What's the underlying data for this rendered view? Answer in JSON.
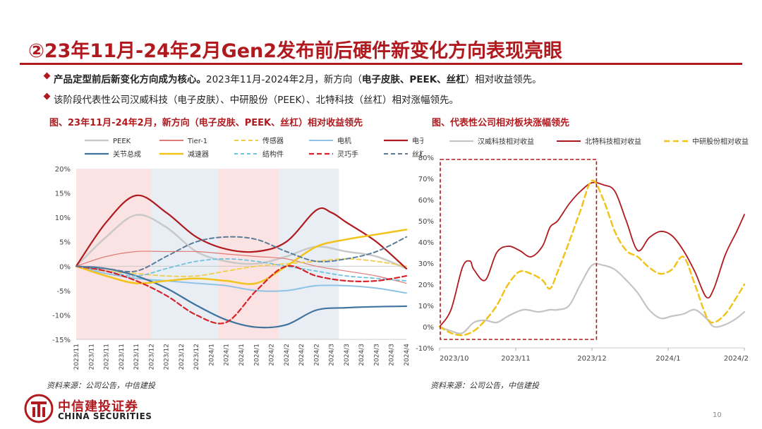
{
  "header": {
    "title": "②23年11月-24年2月Gen2发布前后硬件新变化方向表现亮眼"
  },
  "bullets": [
    {
      "bold": "产品定型前后新变化方向成为核心。",
      "text": "2023年11月-2024年2月，新方向（",
      "bold2": "电子皮肤、PEEK、丝杠",
      "text2": "）相对收益领先。"
    },
    {
      "text": "该阶段代表性公司汉威科技（电子皮肤）、中研股份（PEEK）、北特科技（丝杠）相对涨幅领先。"
    }
  ],
  "colors": {
    "accent": "#b01a1f"
  },
  "chart_data": [
    {
      "type": "line",
      "title": "图、23年11月-24年2月，新方向（电子皮肤、PEEK、丝杠）相对收益领先",
      "ylim": [
        -15,
        20
      ],
      "yticks": [
        "20%",
        "15%",
        "10%",
        "5%",
        "0%",
        "-5%",
        "-10%",
        "-15%"
      ],
      "yticks_values": [
        20,
        15,
        10,
        5,
        0,
        -5,
        -10,
        -15
      ],
      "categories": [
        "2023/11",
        "2023/11",
        "2023/11",
        "2023/11",
        "2023/11",
        "2023/12",
        "2023/12",
        "2023/12",
        "2023/12",
        "2024/1",
        "2024/1",
        "2024/1",
        "2024/1",
        "2024/2",
        "2024/2",
        "2024/2",
        "2024/2",
        "2024/3",
        "2024/3",
        "2024/3",
        "2024/3",
        "2024/3",
        "2024/4"
      ],
      "shaded_bands": [
        {
          "from": 0,
          "to": 5,
          "color": "#fbe3e3"
        },
        {
          "from": 5,
          "to": 9.5,
          "color": "#e8eef4"
        },
        {
          "from": 9.5,
          "to": 13.5,
          "color": "#fbe3e3"
        },
        {
          "from": 13.5,
          "to": 17.5,
          "color": "#e8eef4"
        }
      ],
      "series": [
        {
          "name": "PEEK",
          "color": "#c9c9c9",
          "dash": "",
          "width": 2.5,
          "x": [
            0,
            2,
            4,
            6,
            8,
            10,
            12,
            14,
            16,
            18,
            20,
            22
          ],
          "values": [
            0,
            6,
            10.5,
            8,
            3,
            1,
            0.5,
            2,
            4,
            3,
            2,
            -0.5
          ]
        },
        {
          "name": "Tier-1",
          "color": "#e07a78",
          "dash": "",
          "width": 1.2,
          "x": [
            0,
            2,
            4,
            6,
            8,
            10,
            12,
            14,
            16,
            18,
            20,
            22
          ],
          "values": [
            0,
            2,
            3,
            3,
            3,
            2.5,
            2,
            1.5,
            0,
            -1,
            -2,
            -3.5
          ]
        },
        {
          "name": "传感器",
          "color": "#f2cd4a",
          "dash": "6,4",
          "width": 1.8,
          "x": [
            0,
            2,
            4,
            6,
            8,
            10,
            12,
            14,
            16,
            18,
            20,
            22
          ],
          "values": [
            0,
            -1,
            -1.5,
            -2,
            -2,
            -1,
            0,
            0.5,
            1,
            1.5,
            1,
            0
          ]
        },
        {
          "name": "电机",
          "color": "#8ec3e6",
          "dash": "",
          "width": 2,
          "x": [
            0,
            2,
            4,
            6,
            8,
            10,
            12,
            14,
            16,
            18,
            20,
            22
          ],
          "values": [
            0,
            -1.5,
            -2.5,
            -3,
            -3.5,
            -4,
            -5,
            -5,
            -4,
            -4,
            -4.5,
            -5.5
          ]
        },
        {
          "name": "电子皮肤",
          "color": "#b01a1f",
          "dash": "",
          "width": 2.2,
          "x": [
            0,
            2,
            4,
            6,
            8,
            10,
            12,
            14,
            16,
            17,
            18,
            20,
            22
          ],
          "values": [
            0,
            9,
            14.5,
            11,
            6,
            3.5,
            3,
            5,
            11.5,
            11,
            9,
            5,
            -0.5
          ]
        },
        {
          "name": "关节总成",
          "color": "#40739e",
          "dash": "",
          "width": 2.2,
          "x": [
            0,
            2,
            4,
            6,
            8,
            10,
            12,
            14,
            16,
            18,
            20,
            22
          ],
          "values": [
            0,
            -0.5,
            -2,
            -4.5,
            -8,
            -11,
            -12.5,
            -12,
            -9,
            -8.5,
            -8.3,
            -8.2
          ]
        },
        {
          "name": "减速器",
          "color": "#f2c31a",
          "dash": "",
          "width": 2.5,
          "x": [
            0,
            2,
            4,
            6,
            8,
            10,
            12,
            14,
            16,
            18,
            20,
            22
          ],
          "values": [
            0,
            -2,
            -3.5,
            -3,
            -2.5,
            -3,
            -3.5,
            0,
            4,
            5.5,
            6.5,
            7.5
          ]
        },
        {
          "name": "结构件",
          "color": "#70c2df",
          "dash": "5,4",
          "width": 1.8,
          "x": [
            0,
            2,
            4,
            6,
            8,
            10,
            12,
            14,
            16,
            18,
            20,
            22
          ],
          "values": [
            0,
            -1,
            -2,
            -0.5,
            1,
            1.5,
            1,
            0,
            -1,
            -2,
            -2.5,
            -3
          ]
        },
        {
          "name": "灵巧手",
          "color": "#d6242a",
          "dash": "7,4",
          "width": 2.2,
          "x": [
            0,
            2,
            4,
            6,
            8,
            10,
            12,
            14,
            16,
            18,
            20,
            22
          ],
          "values": [
            0,
            -1,
            -3,
            -6,
            -10,
            -11.5,
            -5,
            0,
            -2,
            -3,
            -3,
            -2
          ]
        },
        {
          "name": "丝杠",
          "color": "#5b7d99",
          "dash": "6,4",
          "width": 2,
          "x": [
            0,
            2,
            4,
            6,
            8,
            10,
            12,
            14,
            16,
            18,
            20,
            22
          ],
          "values": [
            0,
            -0.5,
            -1,
            2,
            5,
            6,
            5.5,
            3,
            1,
            1.5,
            3,
            6
          ]
        }
      ]
    },
    {
      "type": "line",
      "title": "图、代表性公司相对板块涨幅领先",
      "ylim": [
        -10,
        80
      ],
      "yticks": [
        "80%",
        "70%",
        "60%",
        "50%",
        "40%",
        "30%",
        "20%",
        "10%",
        "0%",
        "-10%"
      ],
      "yticks_values": [
        80,
        70,
        60,
        50,
        40,
        30,
        20,
        10,
        0,
        -10
      ],
      "xticks": [
        "2023/10",
        "2023/11",
        "2023/12",
        "2024/1",
        "2024/2"
      ],
      "xticks_values": [
        0,
        1,
        2,
        3,
        4
      ],
      "highlight_box": {
        "x_from": 0,
        "x_to": 2.05,
        "y_from": -6,
        "y_to": 79
      },
      "series": [
        {
          "name": "汉威科技相对收益",
          "color": "#c4c4c4",
          "dash": "",
          "width": 2.2,
          "x": [
            0,
            0.15,
            0.3,
            0.45,
            0.6,
            0.75,
            0.9,
            1.1,
            1.3,
            1.45,
            1.55,
            1.7,
            1.85,
            2.0,
            2.15,
            2.3,
            2.45,
            2.6,
            2.75,
            2.9,
            3.05,
            3.2,
            3.35,
            3.5,
            3.6,
            3.75,
            3.9,
            4.0
          ],
          "values": [
            0,
            -2,
            -3,
            2,
            3,
            2,
            5,
            8,
            7,
            8,
            8,
            10,
            20,
            29,
            29,
            27,
            22,
            16,
            8,
            4,
            5,
            6,
            8,
            4,
            0,
            1,
            4,
            7
          ]
        },
        {
          "name": "北特科技相对收益",
          "color": "#b01a1f",
          "dash": "",
          "width": 1.8,
          "x": [
            0,
            0.15,
            0.3,
            0.4,
            0.45,
            0.6,
            0.75,
            0.9,
            1.05,
            1.2,
            1.35,
            1.45,
            1.55,
            1.7,
            1.85,
            2.0,
            2.15,
            2.3,
            2.45,
            2.6,
            2.75,
            2.9,
            3.05,
            3.2,
            3.35,
            3.5,
            3.6,
            3.75,
            3.9,
            4.0
          ],
          "values": [
            0,
            8,
            28,
            31,
            27,
            22,
            35,
            38,
            36,
            33,
            38,
            47,
            50,
            58,
            64,
            68,
            67,
            64,
            50,
            36,
            42,
            45,
            43,
            36,
            26,
            14,
            18,
            34,
            45,
            53
          ]
        },
        {
          "name": "中研股份相对收益",
          "color": "#f2c31a",
          "dash": "8,5",
          "width": 2.5,
          "x": [
            0,
            0.15,
            0.3,
            0.45,
            0.6,
            0.75,
            0.9,
            1.05,
            1.2,
            1.35,
            1.45,
            1.55,
            1.7,
            1.85,
            2.0,
            2.15,
            2.3,
            2.45,
            2.6,
            2.75,
            2.9,
            3.05,
            3.2,
            3.35,
            3.5,
            3.6,
            3.75,
            3.9,
            4.0
          ],
          "values": [
            0,
            -3,
            -4,
            -2,
            3,
            10,
            20,
            26,
            25,
            22,
            18,
            26,
            40,
            55,
            69,
            60,
            45,
            36,
            33,
            28,
            25,
            27,
            33,
            20,
            5,
            2,
            6,
            14,
            20
          ]
        }
      ]
    }
  ],
  "sources": [
    "资料来源：公司公告，中信建投",
    "资料来源：公司公告，中信建投"
  ],
  "logo": {
    "cn": "中信建投证券",
    "en": "CHINA SECURITIES"
  },
  "page_number": "10"
}
